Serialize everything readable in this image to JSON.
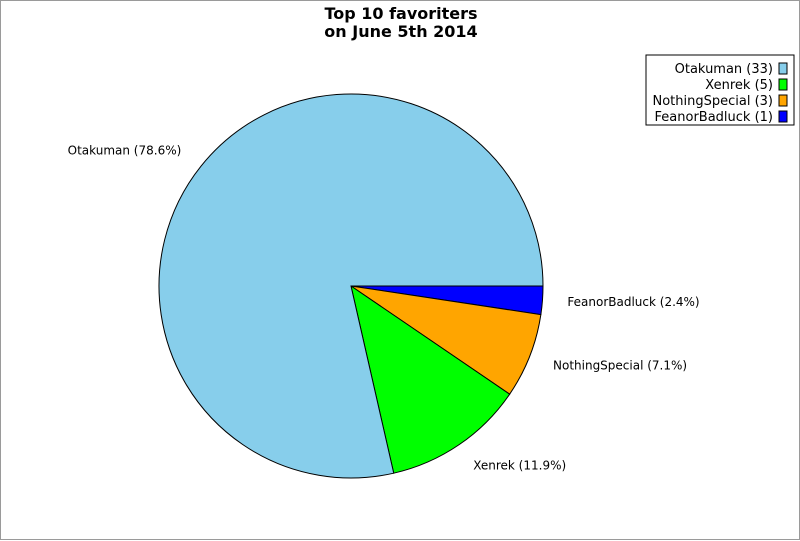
{
  "chart_data": {
    "type": "pie",
    "title": [
      "Top 10 favoriters",
      "on June 5th 2014"
    ],
    "slices": [
      {
        "name": "Otakuman",
        "value": 33,
        "label": "Otakuman (78.6%)",
        "legend": "Otakuman (33)",
        "color": "#87ceeb"
      },
      {
        "name": "Xenrek",
        "value": 5,
        "label": "Xenrek (11.9%)",
        "legend": "Xenrek (5)",
        "color": "#00ff00"
      },
      {
        "name": "NothingSpecial",
        "value": 3,
        "label": "NothingSpecial (7.1%)",
        "legend": "NothingSpecial (3)",
        "color": "#ffa500"
      },
      {
        "name": "FeanorBadluck",
        "value": 1,
        "label": "FeanorBadluck (2.4%)",
        "legend": "FeanorBadluck (1)",
        "color": "#0000ff"
      }
    ],
    "legend_position": "top-right"
  }
}
